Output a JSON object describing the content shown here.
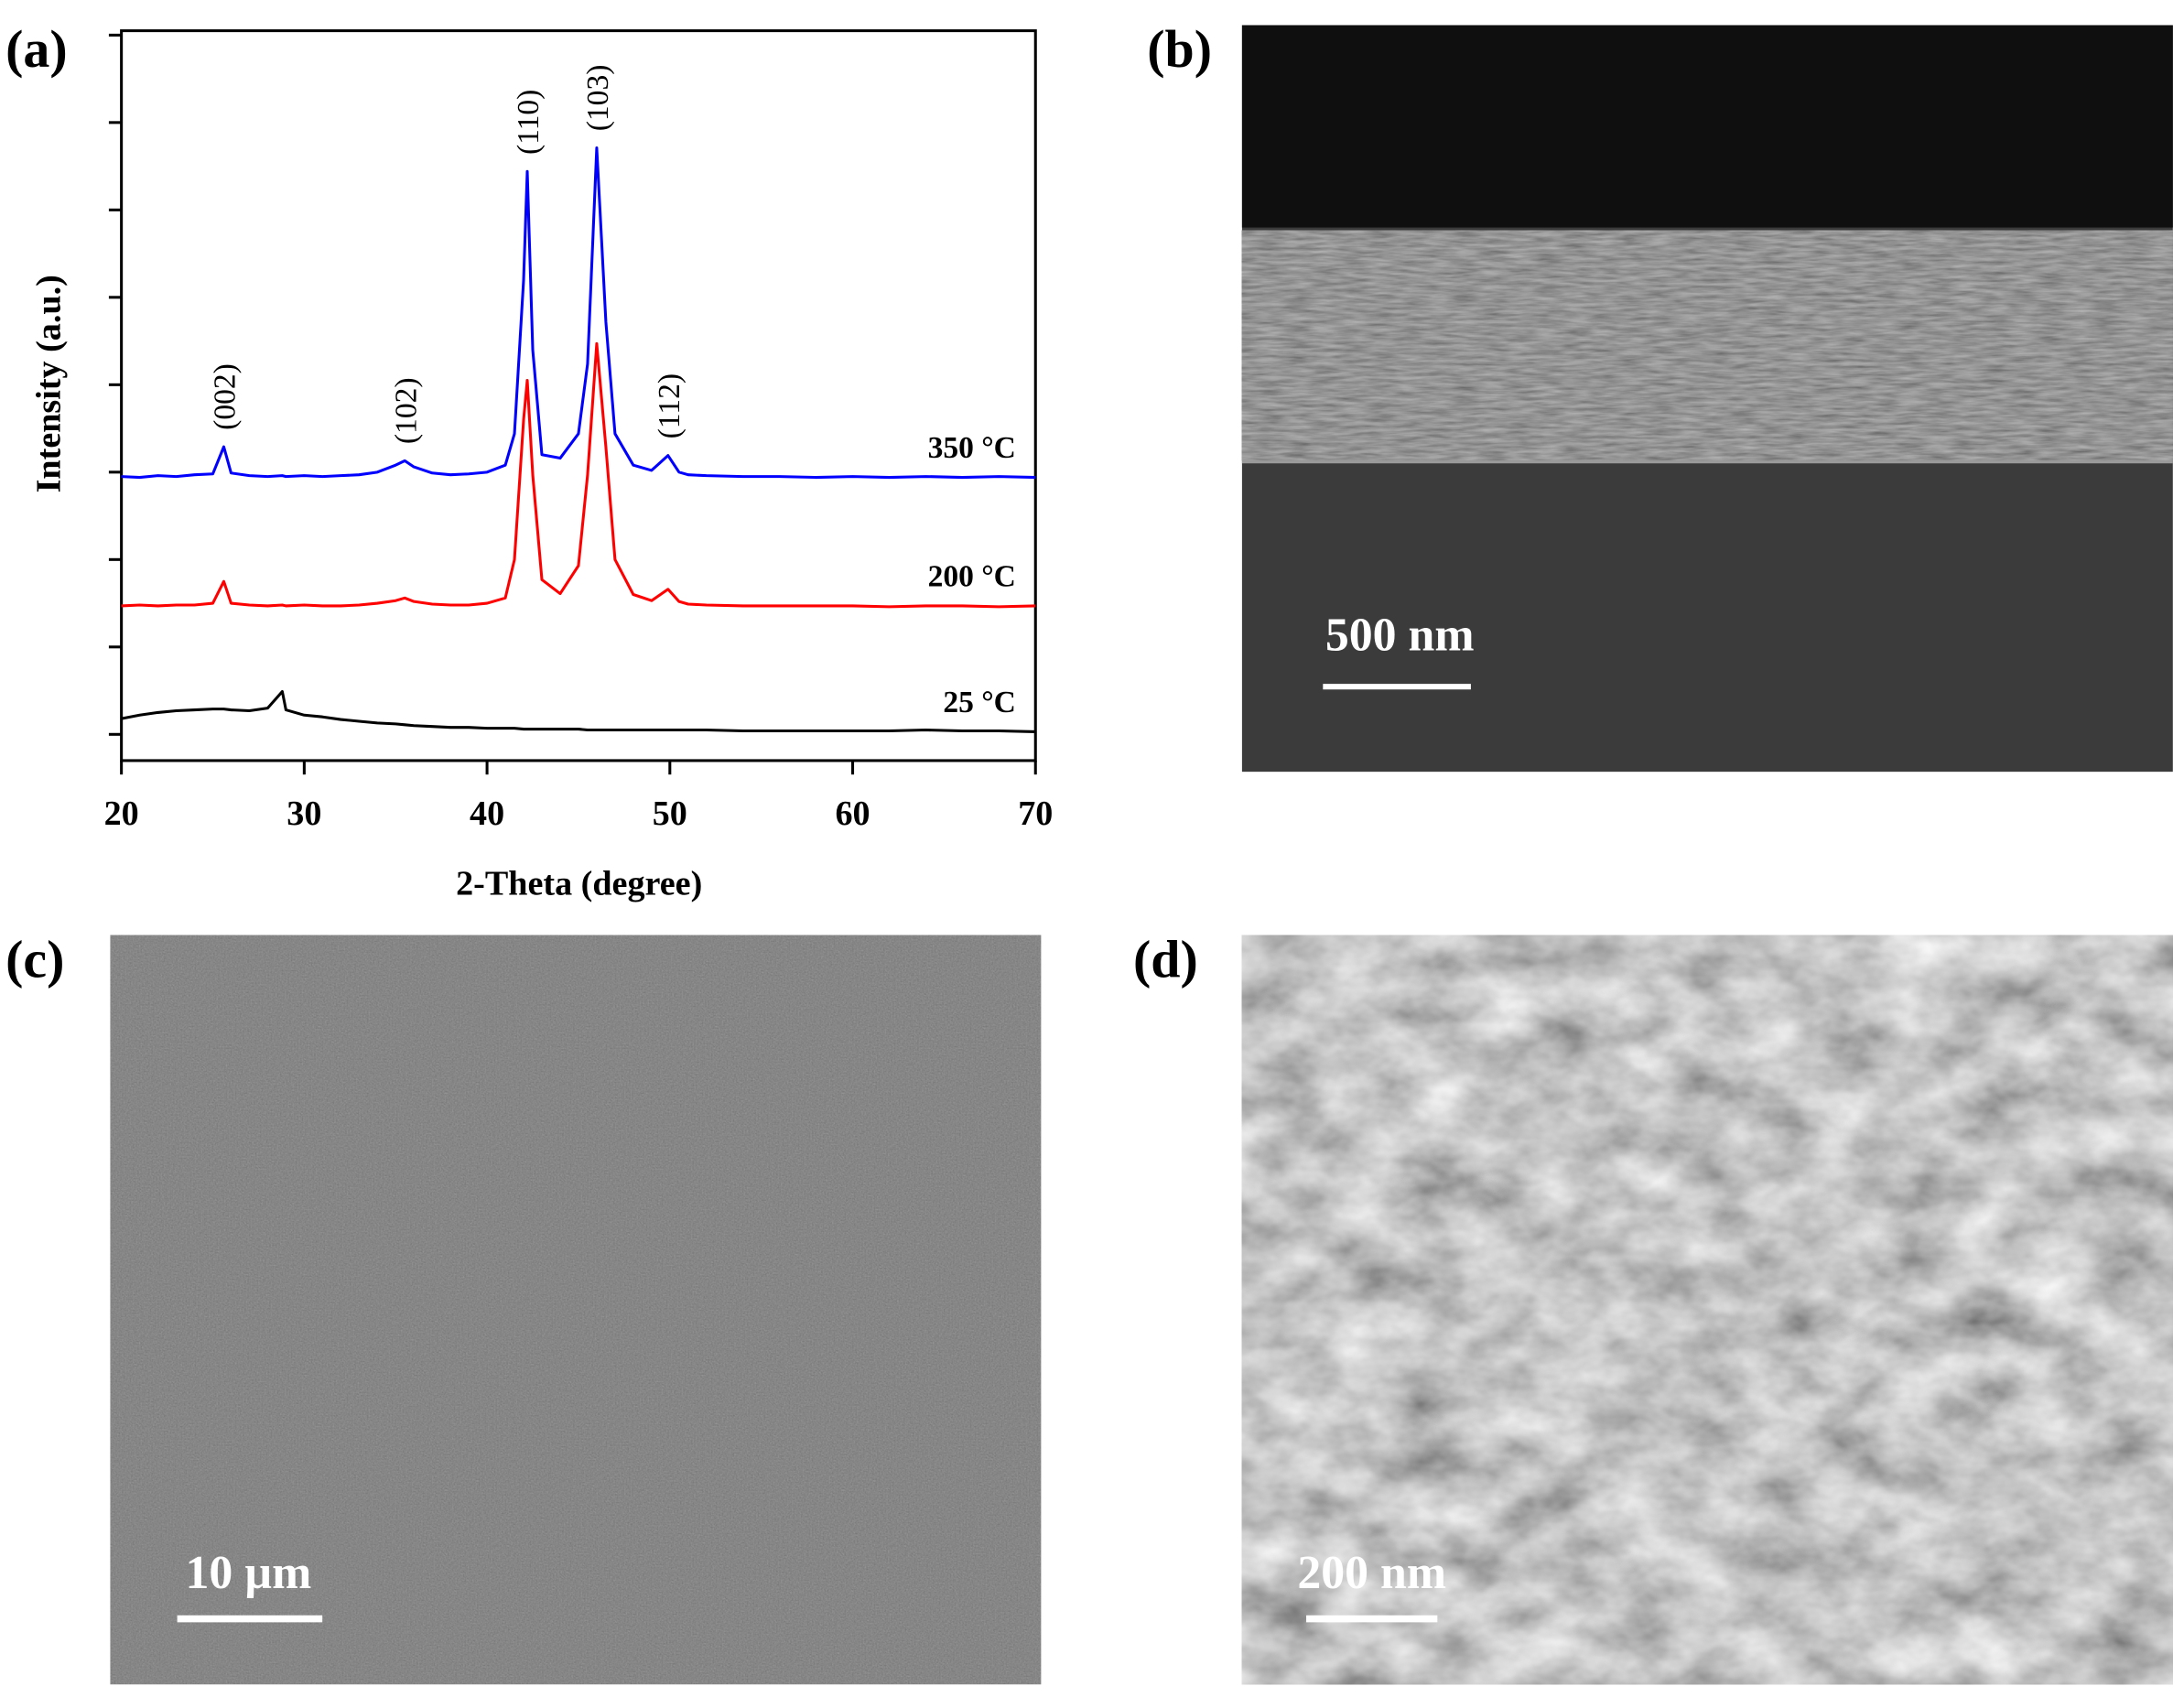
{
  "chart_data": {
    "type": "line",
    "x_label": "2-Theta (degree)",
    "y_label": "Intensity (a.u.)",
    "x": [
      20,
      21,
      22,
      23,
      24,
      25,
      25.6,
      26,
      27,
      28,
      28.8,
      29,
      30,
      31,
      32,
      33,
      34,
      35,
      35.5,
      36,
      37,
      38,
      39,
      40,
      41,
      41.5,
      42,
      42.2,
      42.5,
      43,
      44,
      45,
      45.5,
      46,
      46.5,
      47,
      48,
      49,
      49.9,
      50.5,
      51,
      52,
      54,
      56,
      58,
      60,
      62,
      64,
      66,
      68,
      70
    ],
    "series": [
      {
        "name": "350 °C",
        "color": "#0000ff",
        "values": [
          2.95,
          2.94,
          2.96,
          2.95,
          2.97,
          2.98,
          3.29,
          2.99,
          2.96,
          2.95,
          2.96,
          2.95,
          2.96,
          2.95,
          2.96,
          2.97,
          3.0,
          3.08,
          3.13,
          3.06,
          2.99,
          2.97,
          2.98,
          3.0,
          3.08,
          3.44,
          5.2,
          6.44,
          4.4,
          3.2,
          3.16,
          3.44,
          4.24,
          6.71,
          4.72,
          3.44,
          3.08,
          3.02,
          3.19,
          3.0,
          2.97,
          2.96,
          2.95,
          2.95,
          2.94,
          2.95,
          2.94,
          2.95,
          2.94,
          2.95,
          2.94
        ]
      },
      {
        "name": "200 °C",
        "color": "#ff0000",
        "values": [
          1.47,
          1.48,
          1.47,
          1.48,
          1.48,
          1.5,
          1.75,
          1.5,
          1.48,
          1.47,
          1.48,
          1.47,
          1.48,
          1.47,
          1.47,
          1.48,
          1.5,
          1.53,
          1.56,
          1.52,
          1.49,
          1.48,
          1.48,
          1.5,
          1.56,
          2.0,
          3.6,
          4.05,
          2.97,
          1.77,
          1.61,
          1.93,
          2.97,
          4.47,
          3.29,
          2.0,
          1.6,
          1.53,
          1.66,
          1.52,
          1.49,
          1.48,
          1.47,
          1.47,
          1.47,
          1.47,
          1.46,
          1.47,
          1.47,
          1.46,
          1.47
        ]
      },
      {
        "name": "25 °C",
        "color": "#000000",
        "values": [
          0.18,
          0.22,
          0.25,
          0.27,
          0.28,
          0.29,
          0.29,
          0.28,
          0.27,
          0.3,
          0.49,
          0.28,
          0.22,
          0.2,
          0.17,
          0.15,
          0.13,
          0.12,
          0.11,
          0.1,
          0.09,
          0.08,
          0.08,
          0.07,
          0.07,
          0.07,
          0.06,
          0.06,
          0.06,
          0.06,
          0.06,
          0.06,
          0.05,
          0.05,
          0.05,
          0.05,
          0.05,
          0.05,
          0.05,
          0.05,
          0.05,
          0.05,
          0.04,
          0.04,
          0.04,
          0.04,
          0.04,
          0.05,
          0.04,
          0.04,
          0.03
        ]
      }
    ],
    "peaks": [
      {
        "label": "(002)",
        "x": 25.6
      },
      {
        "label": "(102)",
        "x": 35.5
      },
      {
        "label": "(110)",
        "x": 42.2
      },
      {
        "label": "(103)",
        "x": 46
      },
      {
        "label": "(112)",
        "x": 49.9
      }
    ],
    "xlim": [
      20,
      70
    ],
    "xticks": [
      20,
      30,
      40,
      50,
      60,
      70
    ],
    "ylim": [
      -0.3,
      8.05
    ],
    "yticks": [
      0,
      1,
      2,
      3,
      4,
      5,
      6,
      7,
      8
    ]
  },
  "panel_labels": [
    "(a)",
    "(b)",
    "(c)",
    "(d)"
  ],
  "scale_bars": [
    "500 nm",
    "10 µm",
    "200 nm"
  ]
}
